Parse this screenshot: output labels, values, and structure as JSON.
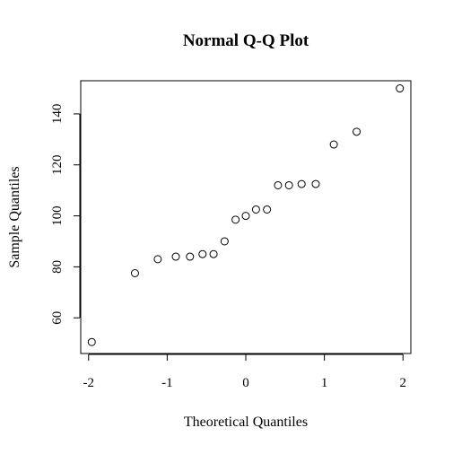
{
  "chart_data": {
    "type": "scatter",
    "title": "Normal Q-Q Plot",
    "xlabel": "Theoretical Quantiles",
    "ylabel": "Sample Quantiles",
    "xlim": [
      -2.1,
      2.1
    ],
    "ylim": [
      46,
      153
    ],
    "x_ticks": [
      -2,
      -1,
      0,
      1,
      2
    ],
    "x_tick_labels": [
      "-2",
      "-1",
      "0",
      "1",
      "2"
    ],
    "y_ticks": [
      60,
      80,
      100,
      120,
      140
    ],
    "y_tick_labels": [
      "60",
      "80",
      "100",
      "120",
      "140"
    ],
    "grid": false,
    "legend": "none",
    "points": [
      {
        "x": -1.96,
        "y": 50.5
      },
      {
        "x": -1.41,
        "y": 77.5
      },
      {
        "x": -1.12,
        "y": 83
      },
      {
        "x": -0.89,
        "y": 84
      },
      {
        "x": -0.71,
        "y": 84
      },
      {
        "x": -0.55,
        "y": 85
      },
      {
        "x": -0.41,
        "y": 85
      },
      {
        "x": -0.27,
        "y": 90
      },
      {
        "x": -0.13,
        "y": 98.5
      },
      {
        "x": 0.0,
        "y": 100
      },
      {
        "x": 0.13,
        "y": 102.5
      },
      {
        "x": 0.27,
        "y": 102.5
      },
      {
        "x": 0.41,
        "y": 112
      },
      {
        "x": 0.55,
        "y": 112
      },
      {
        "x": 0.71,
        "y": 112.5
      },
      {
        "x": 0.89,
        "y": 112.5
      },
      {
        "x": 1.12,
        "y": 128
      },
      {
        "x": 1.41,
        "y": 133
      },
      {
        "x": 1.96,
        "y": 150
      }
    ]
  }
}
